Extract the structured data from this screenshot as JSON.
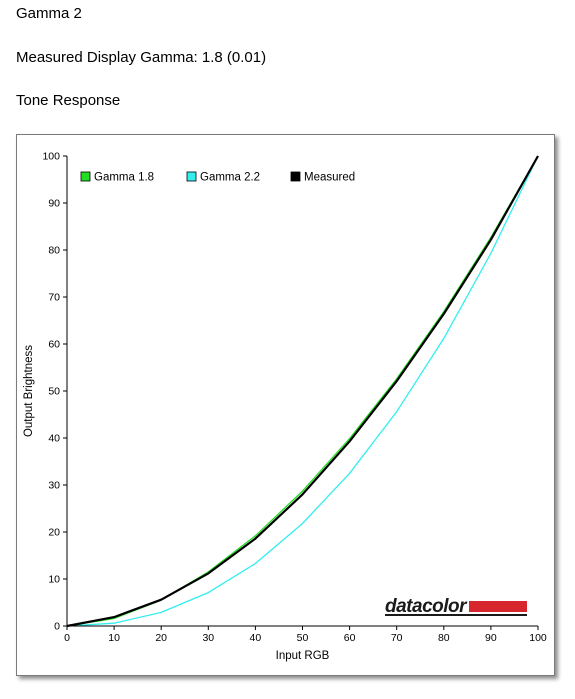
{
  "page": {
    "title": "Gamma 2",
    "subtitle": "Measured Display Gamma: 1.8 (0.01)",
    "section": "Tone Response"
  },
  "brand": {
    "logo_text": "datacolor",
    "logo_color": "#d8262e"
  },
  "colors": {
    "gamma18": "#22dd22",
    "gamma22": "#33eeee",
    "measured": "#000000"
  },
  "chart_data": {
    "type": "line",
    "title": "",
    "xlabel": "Input RGB",
    "ylabel": "Output Brightness",
    "xlim": [
      0,
      100
    ],
    "ylim": [
      0,
      100
    ],
    "xticks": [
      0,
      10,
      20,
      30,
      40,
      50,
      60,
      70,
      80,
      90,
      100
    ],
    "yticks": [
      0,
      10,
      20,
      30,
      40,
      50,
      60,
      70,
      80,
      90,
      100
    ],
    "grid": false,
    "legend_position": "top-left",
    "series": [
      {
        "name": "Gamma 1.8",
        "color": "#22dd22",
        "x": [
          0,
          10,
          20,
          30,
          40,
          50,
          60,
          70,
          80,
          90,
          100
        ],
        "y": [
          0,
          1.6,
          5.5,
          11.5,
          19.2,
          28.7,
          39.9,
          52.6,
          66.9,
          82.7,
          100
        ]
      },
      {
        "name": "Gamma 2.2",
        "color": "#33eeee",
        "x": [
          0,
          10,
          20,
          30,
          40,
          50,
          60,
          70,
          80,
          90,
          100
        ],
        "y": [
          0,
          0.6,
          2.9,
          7.1,
          13.3,
          21.8,
          32.5,
          45.6,
          61.2,
          79.3,
          100
        ]
      },
      {
        "name": "Measured",
        "color": "#000000",
        "x": [
          0,
          10,
          20,
          30,
          40,
          50,
          60,
          70,
          80,
          90,
          100
        ],
        "y": [
          0,
          1.9,
          5.6,
          11.2,
          18.6,
          28.0,
          39.3,
          52.1,
          66.4,
          82.2,
          100
        ]
      }
    ]
  }
}
